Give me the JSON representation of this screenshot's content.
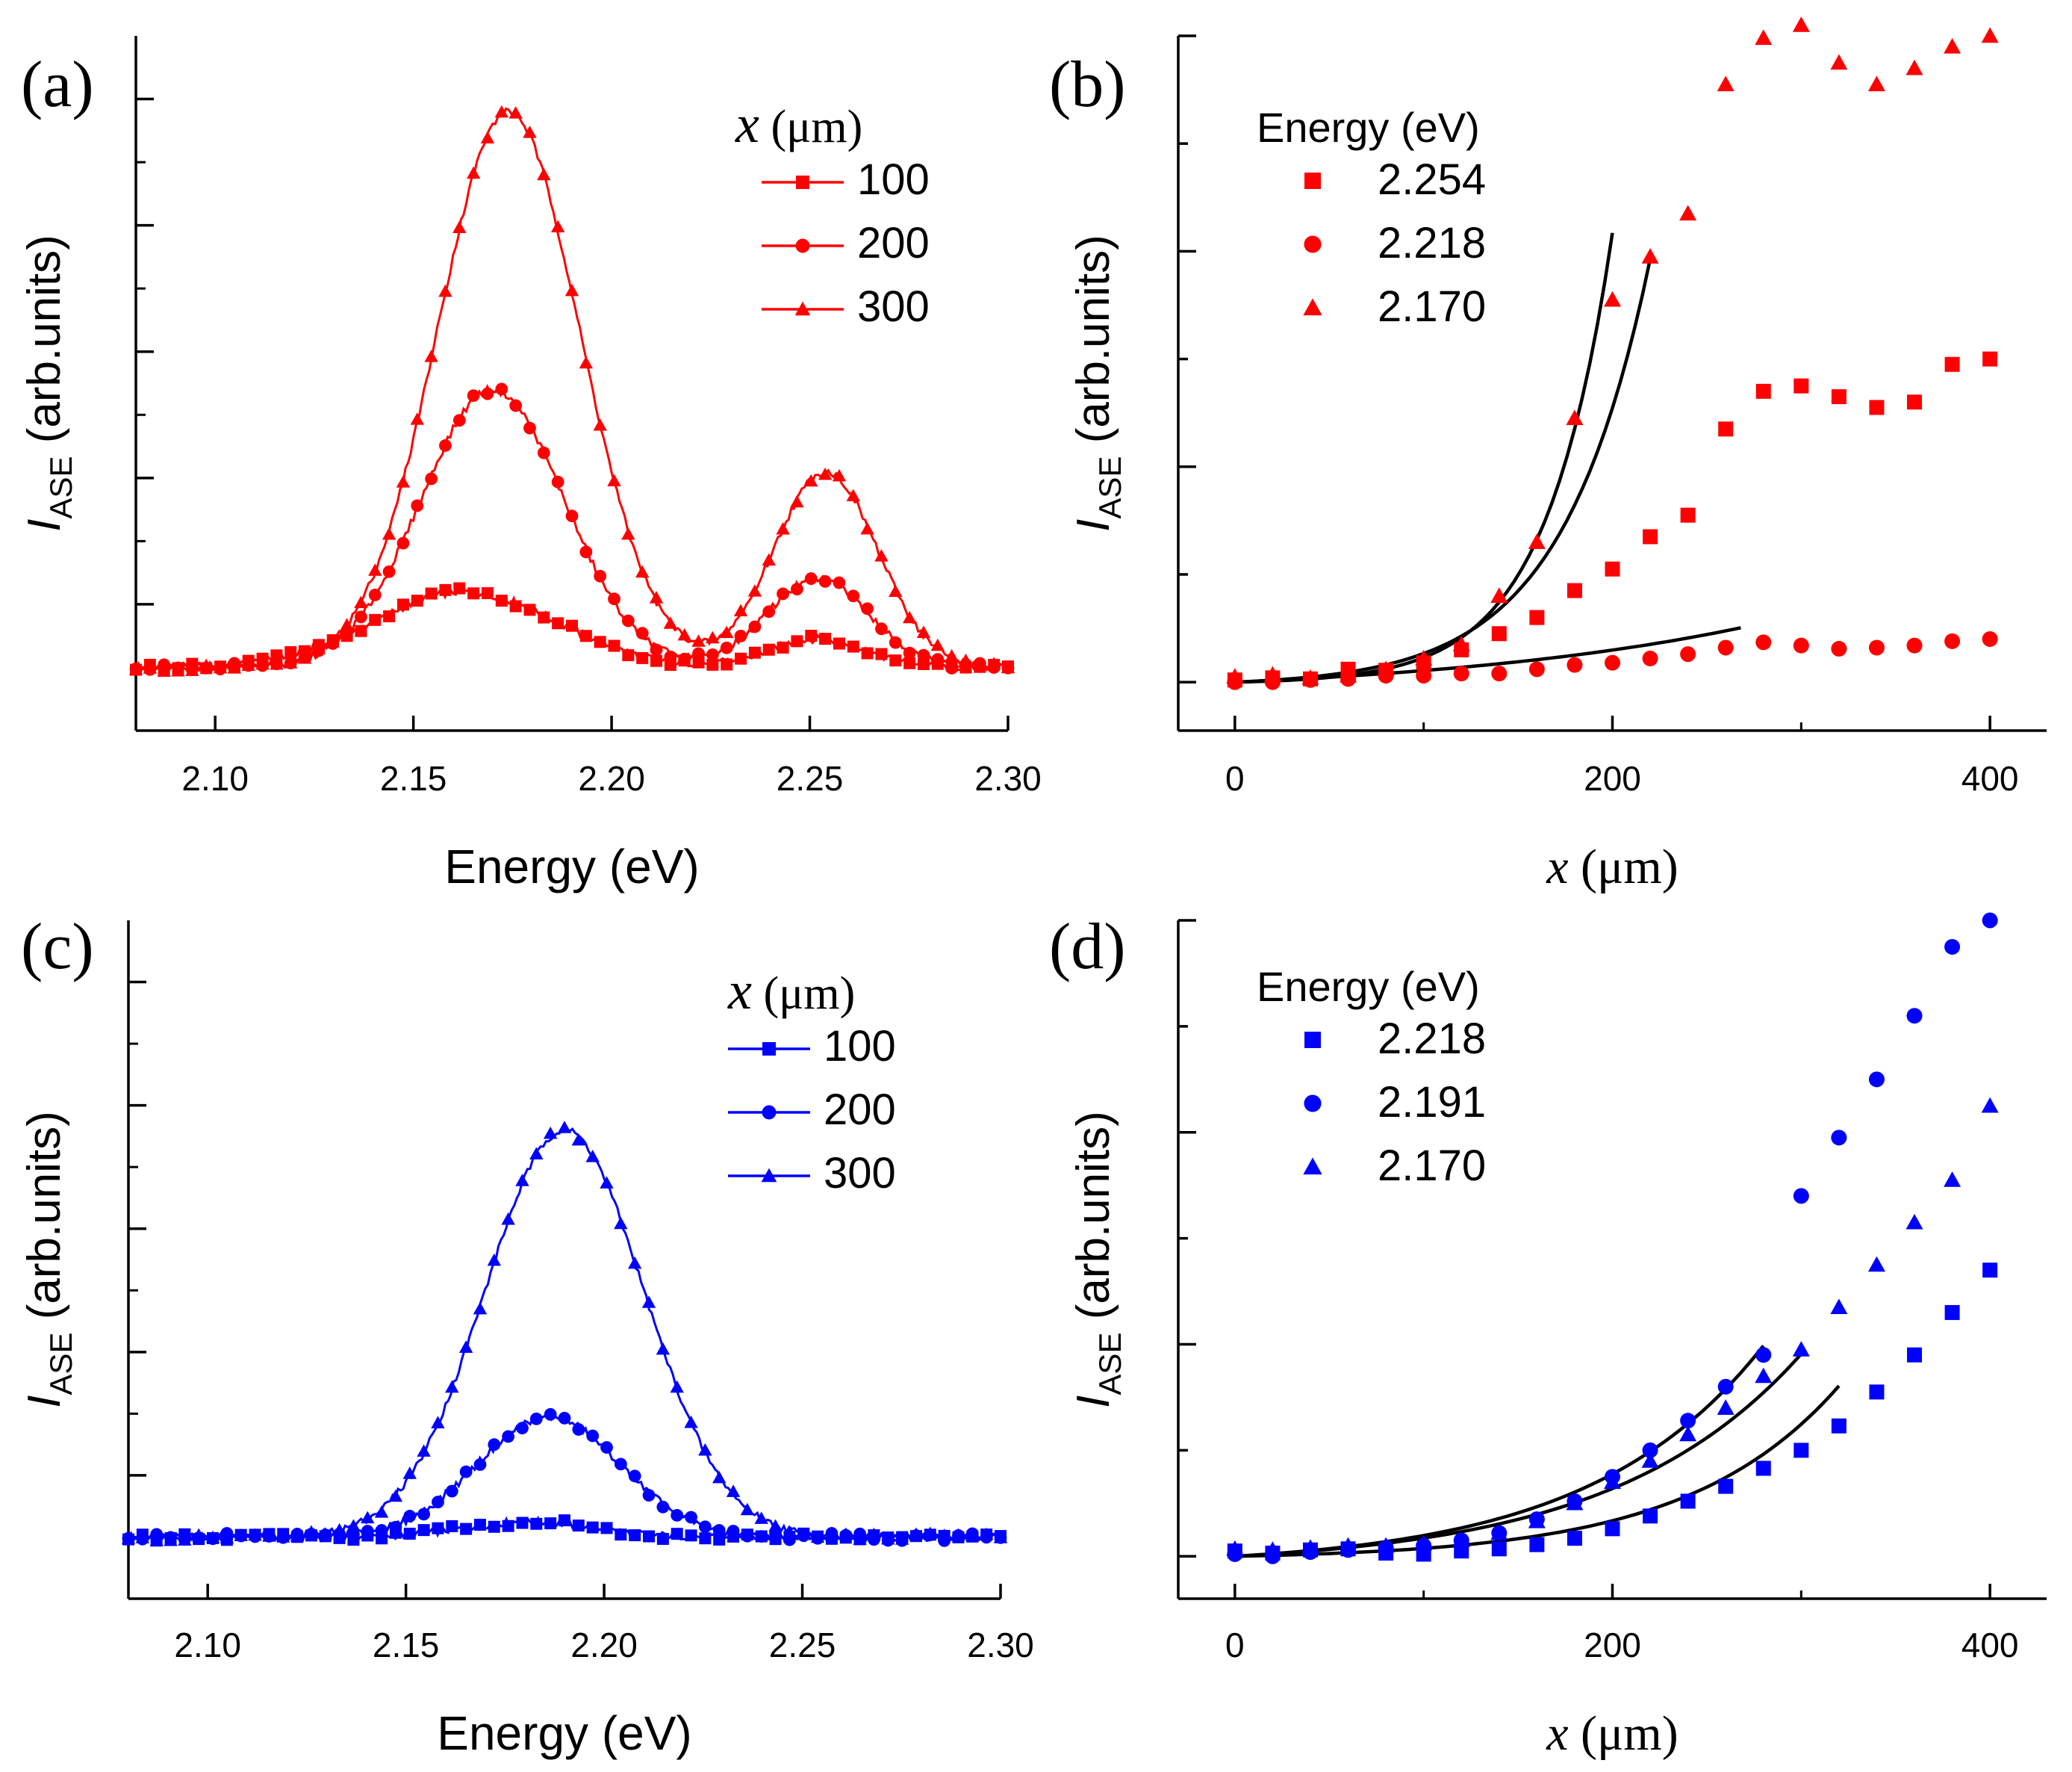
{
  "chart_data": [
    {
      "id": "a",
      "type": "line",
      "panel_label": "(a)",
      "color": "#ff0000",
      "xlabel": "Energy (eV)",
      "ylabel_main": "I",
      "ylabel_sub": "ASE",
      "ylabel_unit": " (arb.units)",
      "xlim": [
        2.08,
        2.3
      ],
      "ylim": [
        -0.1,
        1.0
      ],
      "xticks": [
        2.1,
        2.15,
        2.2,
        2.25,
        2.3
      ],
      "xtick_labels": [
        "2.10",
        "2.15",
        "2.20",
        "2.25",
        "2.30"
      ],
      "yticks": [
        0.1,
        0.3,
        0.5,
        0.7,
        0.9
      ],
      "legend_title_var": "x",
      "legend_title_unit": " (μm)",
      "series": [
        {
          "name": "100",
          "marker": "square",
          "peaks": [
            [
              2.163,
              0.12,
              0.023
            ],
            [
              2.252,
              0.045,
              0.012
            ]
          ]
        },
        {
          "name": "200",
          "marker": "circle",
          "peaks": [
            [
              2.17,
              0.44,
              0.018
            ],
            [
              2.252,
              0.14,
              0.013
            ]
          ]
        },
        {
          "name": "300",
          "marker": "triangle",
          "peaks": [
            [
              2.174,
              0.88,
              0.018
            ],
            [
              2.254,
              0.31,
              0.013
            ]
          ]
        }
      ]
    },
    {
      "id": "b",
      "type": "scatter",
      "panel_label": "(b)",
      "color": "#ff0000",
      "xlabel_var": "x",
      "xlabel_unit": " (μm)",
      "ylabel_main": "I",
      "ylabel_sub": "ASE",
      "ylabel_unit": " (arb.units)",
      "xlim": [
        -30,
        430
      ],
      "ylim": [
        -0.45,
        6.0
      ],
      "xticks": [
        0,
        200,
        400
      ],
      "xtick_labels": [
        "0",
        "200",
        "400"
      ],
      "yticks": [
        0,
        1,
        2,
        3,
        4,
        5,
        6
      ],
      "legend_title": "Energy (eV)",
      "x": [
        0,
        20,
        40,
        60,
        80,
        100,
        120,
        140,
        160,
        180,
        200,
        220,
        240,
        260,
        280,
        300,
        320,
        340,
        360,
        380,
        400
      ],
      "series": [
        {
          "name": "2.254",
          "marker": "square",
          "values": [
            0.02,
            0.04,
            0.03,
            0.12,
            0.11,
            0.18,
            0.3,
            0.45,
            0.6,
            0.85,
            1.05,
            1.35,
            1.55,
            2.35,
            2.7,
            2.75,
            2.65,
            2.55,
            2.6,
            2.95,
            3.0
          ]
        },
        {
          "name": "2.218",
          "marker": "circle",
          "values": [
            0.0,
            0.0,
            0.02,
            0.03,
            0.06,
            0.06,
            0.08,
            0.08,
            0.12,
            0.16,
            0.18,
            0.22,
            0.26,
            0.32,
            0.37,
            0.34,
            0.31,
            0.32,
            0.34,
            0.38,
            0.4
          ]
        },
        {
          "name": "2.170",
          "marker": "triangle",
          "values": [
            0.05,
            0.07,
            0.04,
            0.06,
            0.12,
            0.22,
            0.35,
            0.8,
            1.3,
            2.45,
            3.55,
            3.95,
            4.35,
            5.55,
            5.98,
            6.1,
            5.75,
            5.55,
            5.7,
            5.9,
            6.0
          ]
        }
      ],
      "fits": [
        {
          "x_end": 200,
          "a": 0.014,
          "b": 0.0285
        },
        {
          "x_end": 220,
          "a": 0.035,
          "b": 0.0215
        },
        {
          "x_end": 270,
          "a": 0.14,
          "b": 0.0057
        }
      ]
    },
    {
      "id": "c",
      "type": "line",
      "panel_label": "(c)",
      "color": "#0000ff",
      "xlabel": "Energy (eV)",
      "ylabel_main": "I",
      "ylabel_sub": "ASE",
      "ylabel_unit": " (arb.units)",
      "xlim": [
        2.08,
        2.3
      ],
      "ylim": [
        -0.1,
        1.0
      ],
      "xticks": [
        2.1,
        2.15,
        2.2,
        2.25,
        2.3
      ],
      "xtick_labels": [
        "2.10",
        "2.15",
        "2.20",
        "2.25",
        "2.30"
      ],
      "yticks": [
        0.1,
        0.3,
        0.5,
        0.7,
        0.9
      ],
      "legend_title_var": "x",
      "legend_title_unit": " (μm)",
      "series": [
        {
          "name": "100",
          "marker": "square",
          "peaks": [
            [
              2.181,
              0.025,
              0.016
            ]
          ]
        },
        {
          "name": "200",
          "marker": "circle",
          "peaks": [
            [
              2.186,
              0.195,
              0.018
            ]
          ]
        },
        {
          "name": "300",
          "marker": "triangle",
          "peaks": [
            [
              2.19,
              0.66,
              0.02
            ]
          ]
        }
      ]
    },
    {
      "id": "d",
      "type": "scatter",
      "panel_label": "(d)",
      "color": "#0000ff",
      "xlabel_var": "x",
      "xlabel_unit": " (μm)",
      "ylabel_main": "I",
      "ylabel_sub": "ASE",
      "ylabel_unit": " (arb.units)",
      "xlim": [
        -30,
        430
      ],
      "ylim": [
        -0.4,
        6.0
      ],
      "xticks": [
        0,
        200,
        400
      ],
      "xtick_labels": [
        "0",
        "200",
        "400"
      ],
      "yticks": [
        0,
        1,
        2,
        3,
        4,
        5,
        6
      ],
      "legend_title": "Energy (eV)",
      "x": [
        0,
        20,
        40,
        60,
        80,
        100,
        120,
        140,
        160,
        180,
        200,
        220,
        240,
        260,
        280,
        300,
        320,
        340,
        360,
        380,
        400
      ],
      "series": [
        {
          "name": "2.218",
          "marker": "square",
          "values": [
            0.05,
            0.03,
            0.06,
            0.07,
            0.03,
            0.02,
            0.05,
            0.07,
            0.11,
            0.17,
            0.26,
            0.38,
            0.52,
            0.66,
            0.83,
            1.0,
            1.23,
            1.55,
            1.9,
            2.3,
            2.7
          ]
        },
        {
          "name": "2.191",
          "marker": "circle",
          "values": [
            0.02,
            0.0,
            0.04,
            0.06,
            0.08,
            0.1,
            0.15,
            0.22,
            0.35,
            0.52,
            0.75,
            1.0,
            1.28,
            1.6,
            1.9,
            3.4,
            3.95,
            4.5,
            5.1,
            5.75,
            6.0
          ]
        },
        {
          "name": "2.170",
          "marker": "triangle",
          "values": [
            0.07,
            0.06,
            0.08,
            0.1,
            0.1,
            0.12,
            0.15,
            0.22,
            0.33,
            0.5,
            0.7,
            0.9,
            1.15,
            1.4,
            1.7,
            1.95,
            2.35,
            2.75,
            3.15,
            3.55,
            4.25
          ]
        }
      ],
      "fits": [
        {
          "x_end": 320,
          "a": 0.03,
          "b": 0.0125
        },
        {
          "x_end": 300,
          "a": 0.1,
          "b": 0.01
        },
        {
          "x_end": 280,
          "a": 0.1,
          "b": 0.01085
        }
      ]
    }
  ]
}
